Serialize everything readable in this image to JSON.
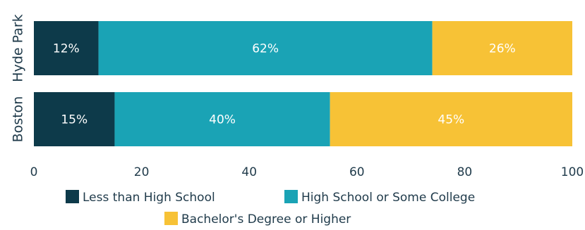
{
  "chart_data": {
    "type": "bar",
    "orientation": "horizontal",
    "stacked": true,
    "categories": [
      "Hyde Park",
      "Boston"
    ],
    "series": [
      {
        "name": "Less than High School",
        "values": [
          12,
          15
        ],
        "labels": [
          "12%",
          "15%"
        ],
        "color": "#0d3a4a"
      },
      {
        "name": "High School or Some College",
        "values": [
          62,
          40
        ],
        "labels": [
          "62%",
          "40%"
        ],
        "color": "#1aa3b5"
      },
      {
        "name": "Bachelor's Degree or Higher",
        "values": [
          26,
          45
        ],
        "labels": [
          "26%",
          "45%"
        ],
        "color": "#f7c236"
      }
    ],
    "xticks": [
      0,
      20,
      40,
      60,
      80,
      100
    ],
    "tick_labels": [
      "0",
      "20",
      "40",
      "60",
      "80",
      "100"
    ],
    "xlim": [
      0,
      100
    ],
    "grid": false,
    "legend_position": "bottom",
    "text_color": "#1f3a4a"
  }
}
